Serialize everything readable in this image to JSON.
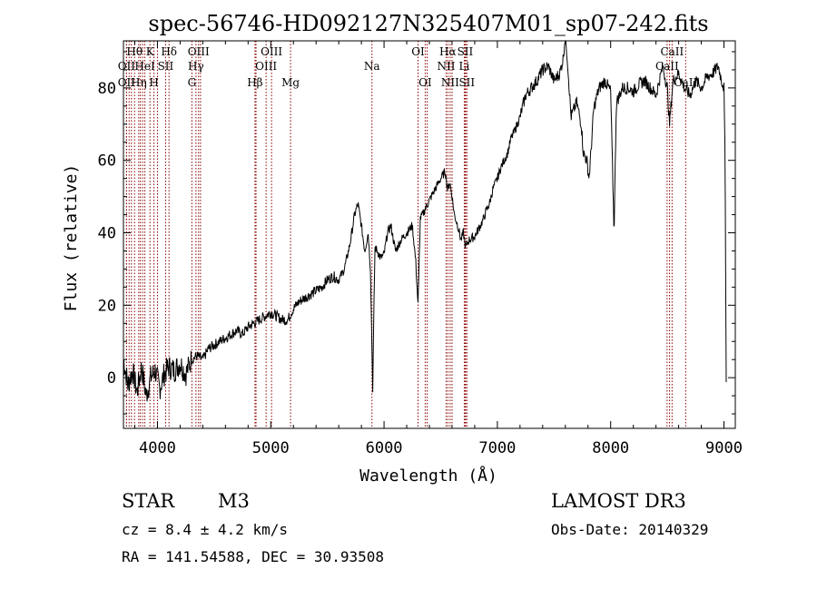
{
  "chart_data": {
    "type": "line",
    "title": "spec-56746-HD092127N325407M01_sp07-242.fits",
    "xlabel": "Wavelength (Å)",
    "ylabel": "Flux (relative)",
    "xlim": [
      3700,
      9100
    ],
    "ylim": [
      -14,
      93
    ],
    "xticks": [
      4000,
      5000,
      6000,
      7000,
      8000,
      9000
    ],
    "yticks": [
      0,
      20,
      40,
      60,
      80
    ],
    "grid": false,
    "legend": "none",
    "line_color": "#000000",
    "marker_color": "#8b0000",
    "series": [
      {
        "x": [
          3700,
          3740,
          3780,
          3820,
          3860,
          3900,
          3940,
          3980,
          4020,
          4060,
          4100,
          4150,
          4200,
          4250,
          4300,
          4350,
          4400,
          4450,
          4500,
          4550,
          4600,
          4650,
          4700,
          4750,
          4800,
          4850,
          4900,
          4950,
          5000,
          5050,
          5100,
          5150,
          5200,
          5250,
          5300,
          5350,
          5400,
          5450,
          5500,
          5550,
          5600,
          5650,
          5700,
          5740,
          5770,
          5800,
          5830,
          5860,
          5880,
          5900,
          5910,
          5920,
          5940,
          5970,
          6000,
          6030,
          6060,
          6100,
          6150,
          6200,
          6250,
          6280,
          6300,
          6320,
          6340,
          6370,
          6400,
          6450,
          6500,
          6540,
          6560,
          6580,
          6600,
          6620,
          6650,
          6680,
          6700,
          6720,
          6750,
          6800,
          6850,
          6880,
          6900,
          6930,
          6960,
          7000,
          7030,
          7060,
          7090,
          7120,
          7150,
          7200,
          7250,
          7300,
          7350,
          7400,
          7450,
          7500,
          7550,
          7580,
          7600,
          7620,
          7650,
          7700,
          7740,
          7760,
          7790,
          7810,
          7830,
          7850,
          7880,
          7900,
          7950,
          8000,
          8030,
          8050,
          8080,
          8100,
          8150,
          8200,
          8250,
          8300,
          8350,
          8400,
          8430,
          8460,
          8500,
          8520,
          8550,
          8600,
          8650,
          8700,
          8750,
          8800,
          8850,
          8900,
          8950,
          8980,
          9000,
          9010,
          9020
        ],
        "y": [
          5,
          -2,
          2,
          -4,
          3,
          -5,
          0,
          2,
          -3,
          1,
          3,
          2,
          4,
          1,
          5,
          6,
          5,
          8,
          9,
          10,
          11,
          12,
          13,
          12,
          14,
          15,
          16,
          17,
          18,
          17,
          16,
          16,
          19,
          21,
          22,
          23,
          24,
          25,
          27,
          28,
          27,
          30,
          37,
          45,
          48,
          42,
          35,
          40,
          30,
          -3,
          18,
          36,
          35,
          33,
          34,
          40,
          42,
          35,
          38,
          40,
          42,
          32,
          20,
          44,
          45,
          47,
          49,
          52,
          55,
          57,
          52,
          54,
          50,
          45,
          42,
          38,
          40,
          36,
          38,
          39,
          42,
          44,
          46,
          48,
          52,
          55,
          58,
          60,
          62,
          66,
          68,
          72,
          78,
          80,
          82,
          85,
          86,
          82,
          84,
          88,
          95,
          87,
          72,
          76,
          70,
          62,
          60,
          55,
          64,
          74,
          78,
          80,
          82,
          79,
          40,
          76,
          78,
          80,
          80,
          79,
          81,
          82,
          80,
          78,
          82,
          86,
          80,
          70,
          82,
          84,
          80,
          78,
          82,
          80,
          83,
          84,
          86,
          82,
          80,
          60,
          0
        ]
      }
    ],
    "lines": [
      {
        "label": "Hθ",
        "wl": 3798,
        "row": 0
      },
      {
        "label": "OII",
        "wl": 3727,
        "row": 1
      },
      {
        "label": "OII",
        "wl": 3727,
        "row": 2
      },
      {
        "label": "Hη",
        "wl": 3835,
        "row": 2
      },
      {
        "label": "K",
        "wl": 3934,
        "row": 0
      },
      {
        "label": "HeI",
        "wl": 3889,
        "row": 1
      },
      {
        "label": "H",
        "wl": 3969,
        "row": 2
      },
      {
        "label": "SII",
        "wl": 4072,
        "row": 1
      },
      {
        "label": "Hδ",
        "wl": 4102,
        "row": 0
      },
      {
        "label": "OIII",
        "wl": 4363,
        "row": 0
      },
      {
        "label": "Hγ",
        "wl": 4340,
        "row": 1
      },
      {
        "label": "G",
        "wl": 4304,
        "row": 2
      },
      {
        "label": "Hβ",
        "wl": 4861,
        "row": 2
      },
      {
        "label": "OIII",
        "wl": 5007,
        "row": 0
      },
      {
        "label": "OIII",
        "wl": 4959,
        "row": 1
      },
      {
        "label": "Mg",
        "wl": 5175,
        "row": 2
      },
      {
        "label": "Na",
        "wl": 5893,
        "row": 1
      },
      {
        "label": "OI",
        "wl": 6300,
        "row": 0
      },
      {
        "label": "OI",
        "wl": 6363,
        "row": 2
      },
      {
        "label": "Hα",
        "wl": 6563,
        "row": 0
      },
      {
        "label": "NII",
        "wl": 6548,
        "row": 1
      },
      {
        "label": "NII",
        "wl": 6583,
        "row": 2
      },
      {
        "label": "SII",
        "wl": 6716,
        "row": 0
      },
      {
        "label": "Li",
        "wl": 6708,
        "row": 1
      },
      {
        "label": "SII",
        "wl": 6731,
        "row": 2
      },
      {
        "label": "CaII",
        "wl": 8542,
        "row": 0
      },
      {
        "label": "CaII",
        "wl": 8498,
        "row": 1
      },
      {
        "label": "CaII",
        "wl": 8662,
        "row": 2
      }
    ],
    "extra_marker_wl": [
      3750,
      3770,
      3850,
      3870,
      4000,
      4380,
      4870,
      6380,
      6600,
      6720,
      8520
    ]
  },
  "info": {
    "object_type": "STAR",
    "subclass": "M3",
    "cz": "cz = 8.4 ± 4.2 km/s",
    "radec": "RA = 141.54588, DEC =  30.93508",
    "survey": "LAMOST DR3",
    "obs_date": "Obs-Date: 20140329"
  }
}
